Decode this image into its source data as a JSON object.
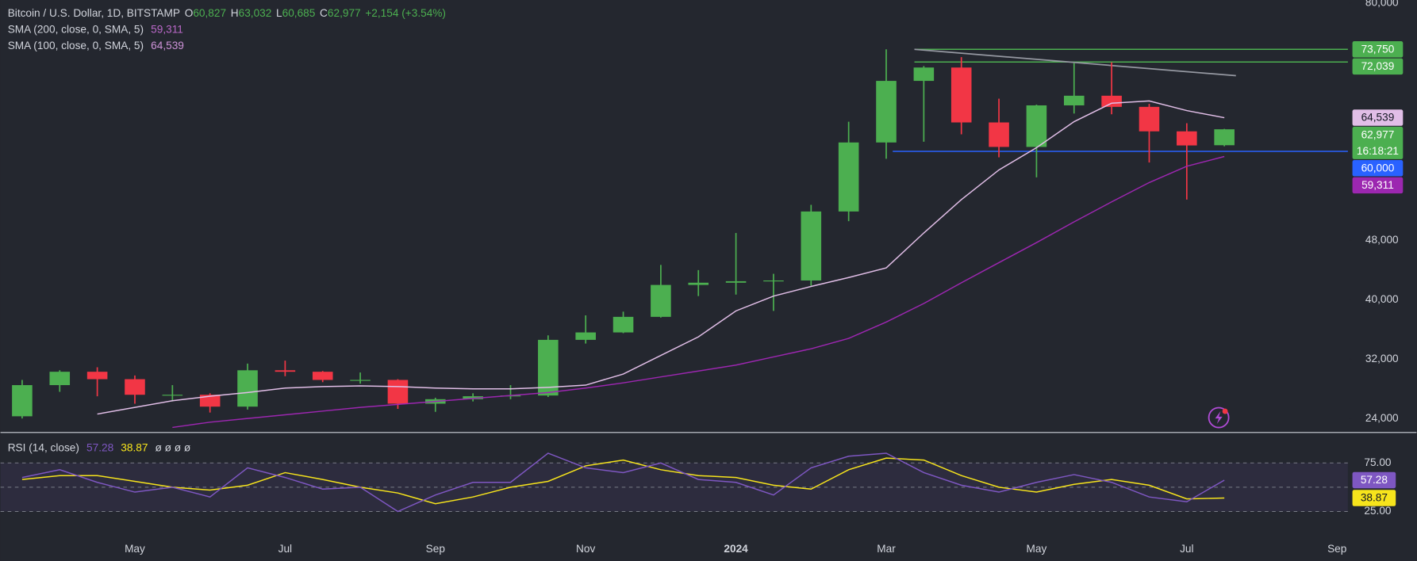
{
  "chart_data": [
    {
      "type": "candlestick",
      "title": "Bitcoin / U.S. Dollar, 1D, BITSTAMP",
      "legend_fields": [
        {
          "key": "O",
          "label": "60,827"
        },
        {
          "key": "H",
          "label": "63,032"
        },
        {
          "key": "L",
          "label": "60,685"
        },
        {
          "key": "C",
          "label": "62,977"
        }
      ],
      "change": "+2,154 (+3.54%)",
      "countdown": "16:18:21",
      "categories": [
        null,
        null,
        null,
        "May",
        null,
        null,
        null,
        "Jul",
        null,
        null,
        null,
        "Sep",
        null,
        null,
        null,
        "Nov",
        null,
        null,
        null,
        "2024",
        null,
        null,
        null,
        "Mar",
        null,
        null,
        null,
        "May",
        null,
        null,
        null,
        "Jul",
        null,
        null,
        null,
        "Sep"
      ],
      "open": [
        24300,
        28500,
        30300,
        29300,
        27200,
        27200,
        25600,
        30500,
        30300,
        29200,
        29200,
        26000,
        26600,
        27000,
        27100,
        34600,
        35600,
        37700,
        42000,
        42300,
        42500,
        42600,
        51900,
        61200,
        69500,
        71300,
        63900,
        60600,
        66200,
        67500,
        66000,
        62700,
        60827,
        null,
        null,
        null
      ],
      "high": [
        29200,
        30500,
        30900,
        29800,
        28500,
        27400,
        31400,
        31800,
        30400,
        30200,
        29300,
        26800,
        27400,
        28500,
        35200,
        37900,
        38400,
        44700,
        44000,
        49000,
        43500,
        52800,
        64000,
        73750,
        71500,
        72700,
        67100,
        66300,
        71900,
        72000,
        66400,
        63800,
        63032,
        null,
        null,
        null
      ],
      "low": [
        24000,
        27600,
        27000,
        26000,
        26300,
        24800,
        25200,
        29700,
        28900,
        28700,
        25300,
        24900,
        26300,
        26600,
        26900,
        34100,
        35500,
        37600,
        40500,
        40700,
        38500,
        41900,
        50600,
        59000,
        61300,
        62300,
        59200,
        56500,
        65100,
        65000,
        58500,
        53500,
        60685,
        null,
        null,
        null
      ],
      "close": [
        28500,
        30300,
        29300,
        27200,
        27200,
        25600,
        30500,
        30300,
        29200,
        29200,
        26000,
        26600,
        27000,
        27100,
        34600,
        35600,
        37700,
        42000,
        42300,
        42500,
        42600,
        51900,
        61200,
        69500,
        71300,
        63900,
        60600,
        66200,
        67500,
        66000,
        62700,
        60800,
        62977,
        null,
        null,
        null
      ],
      "up_color": "#4caf50",
      "down_color": "#f23645",
      "series": [
        {
          "name": "SMA (200, close, 0, SMA, 5)",
          "color": "#9c27b0",
          "text_color": "#ba68c8",
          "last_label": "59,311",
          "values": [
            null,
            null,
            null,
            null,
            22800,
            23500,
            24000,
            24500,
            25000,
            25500,
            25900,
            26300,
            26700,
            27100,
            27500,
            28100,
            28800,
            29600,
            30400,
            31200,
            32300,
            33400,
            34800,
            37000,
            39500,
            42300,
            45000,
            47700,
            50500,
            53200,
            55800,
            58000,
            59311,
            null,
            null,
            null
          ]
        },
        {
          "name": "SMA (100, close, 0, SMA, 5)",
          "color": "#e1bee7",
          "text_color": "#ce93d8",
          "last_label": "64,539",
          "values": [
            null,
            null,
            24600,
            25500,
            26400,
            27000,
            27500,
            28100,
            28300,
            28400,
            28300,
            28100,
            28000,
            28000,
            28200,
            28500,
            30000,
            32500,
            35000,
            38500,
            40500,
            41800,
            43000,
            44300,
            49000,
            53500,
            57500,
            60500,
            64000,
            66500,
            66800,
            65500,
            64539,
            null,
            null,
            null
          ]
        }
      ],
      "price_lines": [
        {
          "value": 73750,
          "label": "73,750",
          "color": "#4caf50"
        },
        {
          "value": 72039,
          "label": "72,039",
          "color": "#4caf50"
        },
        {
          "value": 60000,
          "label": "60,000",
          "color": "#2962ff"
        }
      ],
      "trendline": {
        "from": 73750,
        "to": 70200,
        "color": "#9598a1"
      },
      "ylim": [
        22300,
        80400
      ],
      "yticks": [
        {
          "value": 24000,
          "label": "24,000"
        },
        {
          "value": 32000,
          "label": "32,000"
        },
        {
          "value": 40000,
          "label": "40,000"
        },
        {
          "value": 48000,
          "label": "48,000"
        },
        {
          "value": 80000,
          "label": "80,000"
        }
      ],
      "grid": false
    },
    {
      "type": "line",
      "title": "RSI (14, close)",
      "legend_extra": "ø ø ø ø",
      "series": [
        {
          "color": "#7e57c2",
          "label_text_color": "#ffffff",
          "last_label": "57.28",
          "values": [
            60,
            68,
            55,
            45,
            50,
            40,
            70,
            60,
            48,
            50,
            25,
            42,
            55,
            55,
            85,
            70,
            65,
            75,
            58,
            55,
            42,
            70,
            82,
            85,
            65,
            52,
            45,
            55,
            63,
            55,
            40,
            35,
            57.28,
            null,
            null,
            null
          ]
        },
        {
          "color": "#f7e41c",
          "label_text_color": "#131722",
          "last_label": "38.87",
          "values": [
            58,
            62,
            62,
            56,
            50,
            47,
            52,
            65,
            58,
            50,
            44,
            33,
            40,
            50,
            56,
            72,
            78,
            68,
            62,
            60,
            52,
            48,
            68,
            80,
            78,
            62,
            50,
            45,
            53,
            58,
            52,
            38,
            38.87,
            null,
            null,
            null
          ]
        }
      ],
      "ylim": [
        0,
        105
      ],
      "yticks": [
        {
          "value": 25,
          "label": "25.00"
        },
        {
          "value": 75,
          "label": "75.00"
        }
      ],
      "band_color": "#7e57c2"
    }
  ]
}
